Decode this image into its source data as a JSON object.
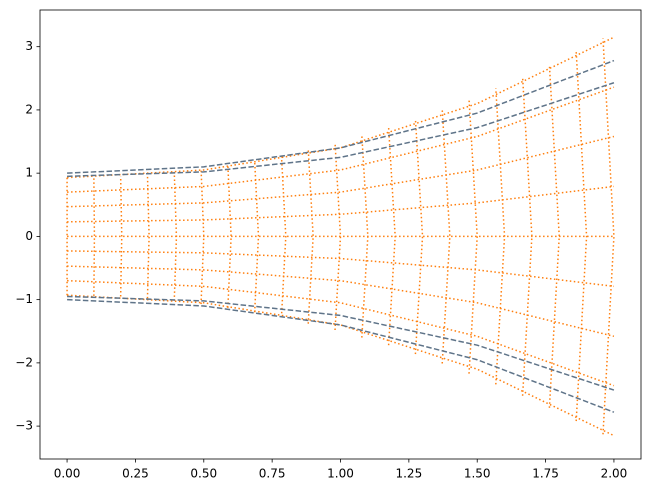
{
  "chart_data": {
    "type": "line",
    "xlim": [
      -0.099,
      2.099
    ],
    "ylim": [
      -3.52,
      3.58
    ],
    "xticks": [
      {
        "value": 0,
        "label": "0.00"
      },
      {
        "value": 0.25,
        "label": "0.25"
      },
      {
        "value": 0.5,
        "label": "0.50"
      },
      {
        "value": 0.75,
        "label": "0.75"
      },
      {
        "value": 1,
        "label": "1.00"
      },
      {
        "value": 1.25,
        "label": "1.25"
      },
      {
        "value": 1.5,
        "label": "1.50"
      },
      {
        "value": 1.75,
        "label": "1.75"
      },
      {
        "value": 2,
        "label": "2.00"
      }
    ],
    "yticks": [
      {
        "value": -3,
        "label": "−3"
      },
      {
        "value": -2,
        "label": "−2"
      },
      {
        "value": -1,
        "label": "−1"
      },
      0,
      1,
      2,
      3
    ],
    "series": [
      {
        "color": "#ff7f0e",
        "linestyle": "dotted",
        "x": [
          0,
          0.5,
          1,
          1.5,
          2
        ],
        "values": [
          0.93,
          1.05,
          1.4,
          2.1,
          3.15
        ]
      },
      {
        "color": "#ff7f0e",
        "linestyle": "dotted",
        "x": [
          0,
          0.5,
          1,
          1.5,
          2
        ],
        "values": [
          0.7,
          0.79,
          1.05,
          1.58,
          2.36
        ]
      },
      {
        "color": "#ff7f0e",
        "linestyle": "dotted",
        "x": [
          0,
          0.5,
          1,
          1.5,
          2
        ],
        "values": [
          0.47,
          0.53,
          0.7,
          1.05,
          1.58
        ]
      },
      {
        "color": "#ff7f0e",
        "linestyle": "dotted",
        "x": [
          0,
          0.5,
          1,
          1.5,
          2
        ],
        "values": [
          0.23,
          0.26,
          0.35,
          0.53,
          0.79
        ]
      },
      {
        "color": "#ff7f0e",
        "linestyle": "dotted",
        "x": [
          0,
          0.5,
          1,
          1.5,
          2
        ],
        "values": [
          0,
          0,
          0,
          0,
          0
        ]
      },
      {
        "color": "#ff7f0e",
        "linestyle": "dotted",
        "x": [
          0,
          0.5,
          1,
          1.5,
          2
        ],
        "values": [
          -0.23,
          -0.26,
          -0.35,
          -0.53,
          -0.79
        ]
      },
      {
        "color": "#ff7f0e",
        "linestyle": "dotted",
        "x": [
          0,
          0.5,
          1,
          1.5,
          2
        ],
        "values": [
          -0.47,
          -0.53,
          -0.7,
          -1.05,
          -1.58
        ]
      },
      {
        "color": "#ff7f0e",
        "linestyle": "dotted",
        "x": [
          0,
          0.5,
          1,
          1.5,
          2
        ],
        "values": [
          -0.7,
          -0.79,
          -1.05,
          -1.58,
          -2.36
        ]
      },
      {
        "color": "#ff7f0e",
        "linestyle": "dotted",
        "x": [
          0,
          0.5,
          1,
          1.5,
          2
        ],
        "values": [
          -0.93,
          -1.05,
          -1.4,
          -2.1,
          -3.15
        ]
      },
      {
        "color": "#ff7f0e",
        "linestyle": "dotted",
        "x": [
          0,
          0,
          0
        ],
        "values": [
          -0.93,
          0,
          0.93
        ]
      },
      {
        "color": "#ff7f0e",
        "linestyle": "dotted",
        "x": [
          0.098,
          0.1,
          0.098
        ],
        "values": [
          -0.94,
          0,
          0.94
        ]
      },
      {
        "color": "#ff7f0e",
        "linestyle": "dotted",
        "x": [
          0.196,
          0.2,
          0.196
        ],
        "values": [
          -0.95,
          0,
          0.95
        ]
      },
      {
        "color": "#ff7f0e",
        "linestyle": "dotted",
        "x": [
          0.294,
          0.3,
          0.294
        ],
        "values": [
          -0.98,
          0,
          0.98
        ]
      },
      {
        "color": "#ff7f0e",
        "linestyle": "dotted",
        "x": [
          0.392,
          0.4,
          0.392
        ],
        "values": [
          -1.02,
          0,
          1.02
        ]
      },
      {
        "color": "#ff7f0e",
        "linestyle": "dotted",
        "x": [
          0.49,
          0.5,
          0.49
        ],
        "values": [
          -1.07,
          0,
          1.07
        ]
      },
      {
        "color": "#ff7f0e",
        "linestyle": "dotted",
        "x": [
          0.588,
          0.6,
          0.588
        ],
        "values": [
          -1.13,
          0,
          1.13
        ]
      },
      {
        "color": "#ff7f0e",
        "linestyle": "dotted",
        "x": [
          0.686,
          0.7,
          0.686
        ],
        "values": [
          -1.2,
          0,
          1.2
        ]
      },
      {
        "color": "#ff7f0e",
        "linestyle": "dotted",
        "x": [
          0.784,
          0.8,
          0.784
        ],
        "values": [
          -1.28,
          0,
          1.28
        ]
      },
      {
        "color": "#ff7f0e",
        "linestyle": "dotted",
        "x": [
          0.882,
          0.9,
          0.882
        ],
        "values": [
          -1.38,
          0,
          1.38
        ]
      },
      {
        "color": "#ff7f0e",
        "linestyle": "dotted",
        "x": [
          0.98,
          1,
          0.98
        ],
        "values": [
          -1.48,
          0,
          1.48
        ]
      },
      {
        "color": "#ff7f0e",
        "linestyle": "dotted",
        "x": [
          1.078,
          1.1,
          1.078
        ],
        "values": [
          -1.6,
          0,
          1.6
        ]
      },
      {
        "color": "#ff7f0e",
        "linestyle": "dotted",
        "x": [
          1.176,
          1.2,
          1.176
        ],
        "values": [
          -1.72,
          0,
          1.72
        ]
      },
      {
        "color": "#ff7f0e",
        "linestyle": "dotted",
        "x": [
          1.274,
          1.3,
          1.274
        ],
        "values": [
          -1.86,
          0,
          1.86
        ]
      },
      {
        "color": "#ff7f0e",
        "linestyle": "dotted",
        "x": [
          1.372,
          1.4,
          1.372
        ],
        "values": [
          -2.01,
          0,
          2.01
        ]
      },
      {
        "color": "#ff7f0e",
        "linestyle": "dotted",
        "x": [
          1.47,
          1.5,
          1.47
        ],
        "values": [
          -2.17,
          0,
          2.17
        ]
      },
      {
        "color": "#ff7f0e",
        "linestyle": "dotted",
        "x": [
          1.568,
          1.6,
          1.568
        ],
        "values": [
          -2.34,
          0,
          2.34
        ]
      },
      {
        "color": "#ff7f0e",
        "linestyle": "dotted",
        "x": [
          1.666,
          1.7,
          1.666
        ],
        "values": [
          -2.52,
          0,
          2.52
        ]
      },
      {
        "color": "#ff7f0e",
        "linestyle": "dotted",
        "x": [
          1.764,
          1.8,
          1.764
        ],
        "values": [
          -2.71,
          0,
          2.71
        ]
      },
      {
        "color": "#ff7f0e",
        "linestyle": "dotted",
        "x": [
          1.862,
          1.9,
          1.862
        ],
        "values": [
          -2.92,
          0,
          2.92
        ]
      },
      {
        "color": "#ff7f0e",
        "linestyle": "dotted",
        "x": [
          1.96,
          2,
          1.96
        ],
        "values": [
          -3.13,
          0,
          3.13
        ]
      },
      {
        "color": "#5f7489",
        "linestyle": "dashed",
        "x": [
          0,
          0.5,
          1,
          1.5,
          2
        ],
        "values": [
          1,
          1.1,
          1.4,
          1.95,
          2.78
        ]
      },
      {
        "color": "#5f7489",
        "linestyle": "dashed",
        "x": [
          0,
          0.5,
          1,
          1.5,
          2
        ],
        "values": [
          0.95,
          1.02,
          1.25,
          1.72,
          2.43
        ]
      },
      {
        "color": "#5f7489",
        "linestyle": "dashed",
        "x": [
          0,
          0.5,
          1,
          1.5,
          2
        ],
        "values": [
          -0.95,
          -1.02,
          -1.25,
          -1.72,
          -2.43
        ]
      },
      {
        "color": "#5f7489",
        "linestyle": "dashed",
        "x": [
          0,
          0.5,
          1,
          1.5,
          2
        ],
        "values": [
          -1,
          -1.1,
          -1.4,
          -1.95,
          -2.78
        ]
      }
    ]
  }
}
